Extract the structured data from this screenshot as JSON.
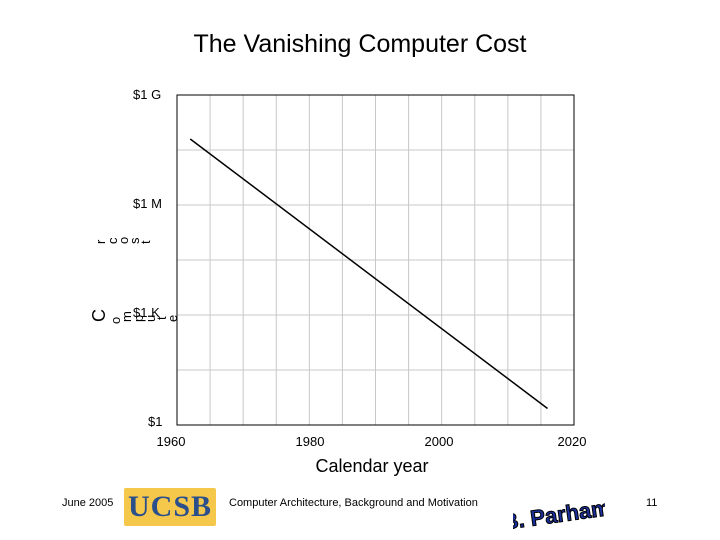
{
  "slide": {
    "title": "The Vanishing Computer Cost",
    "footer_date": "June 2005",
    "footer_center": "Computer Architecture, Background and Motivation",
    "page_number": "11",
    "logo_text": "UCSB",
    "signature_text": "B. Parhami"
  },
  "chart_data": {
    "type": "line",
    "title": "",
    "xlabel": "Calendar year",
    "ylabel_fragments": [
      "C",
      "o",
      "m",
      "p",
      "u",
      "t",
      "e",
      "r",
      "c",
      "o",
      "s",
      "t"
    ],
    "x_ticks": [
      "1960",
      "1980",
      "2000",
      "2020"
    ],
    "y_ticks": [
      "$1",
      "$1 K",
      "$1 M",
      "$1 G"
    ],
    "y_tick_values": [
      0,
      1,
      2,
      3
    ],
    "y_scale": "log",
    "xlim": [
      1960,
      2020
    ],
    "ylim": [
      0,
      3
    ],
    "grid": true,
    "x_grid": [
      1960,
      1965,
      1970,
      1975,
      1980,
      1985,
      1990,
      1995,
      2000,
      2005,
      2010,
      2015,
      2020
    ],
    "y_grid": [
      0,
      0.5,
      1,
      1.5,
      2,
      2.5,
      3
    ],
    "series": [
      {
        "x": [
          1962,
          2016
        ],
        "y": [
          2.6,
          0.15
        ]
      }
    ]
  }
}
